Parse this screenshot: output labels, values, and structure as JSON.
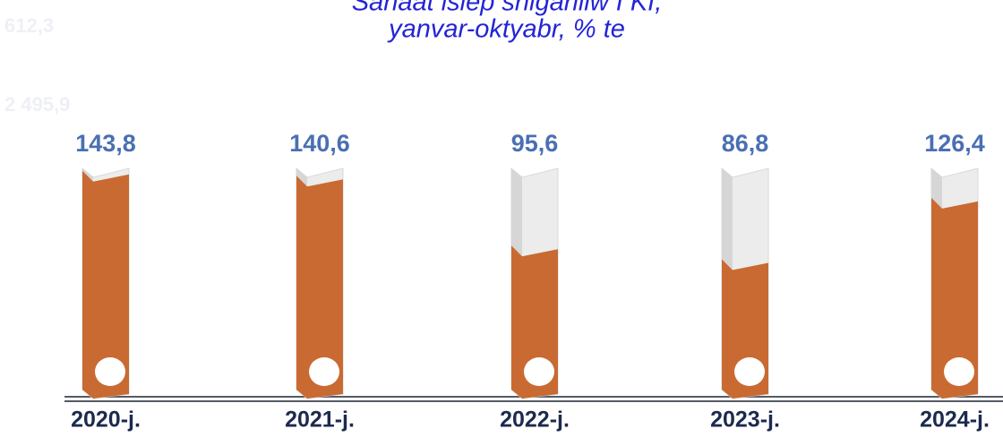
{
  "chart_data": {
    "type": "bar",
    "title": [
      "Sanaat islep shigariliw I KI,",
      "yanvar-oktyabr, % te"
    ],
    "annotations": [
      "612,3",
      "2 495,9"
    ],
    "categories": [
      "2020-j.",
      "2021-j.",
      "2022-j.",
      "2023-j.",
      "2024-j."
    ],
    "values": [
      143.8,
      140.6,
      95.6,
      86.8,
      126.4
    ],
    "value_labels": [
      "143,8",
      "140,6",
      "95,6",
      "86,8",
      "126,4"
    ],
    "color": "#c96a32",
    "ylim": [
      0,
      150
    ]
  }
}
